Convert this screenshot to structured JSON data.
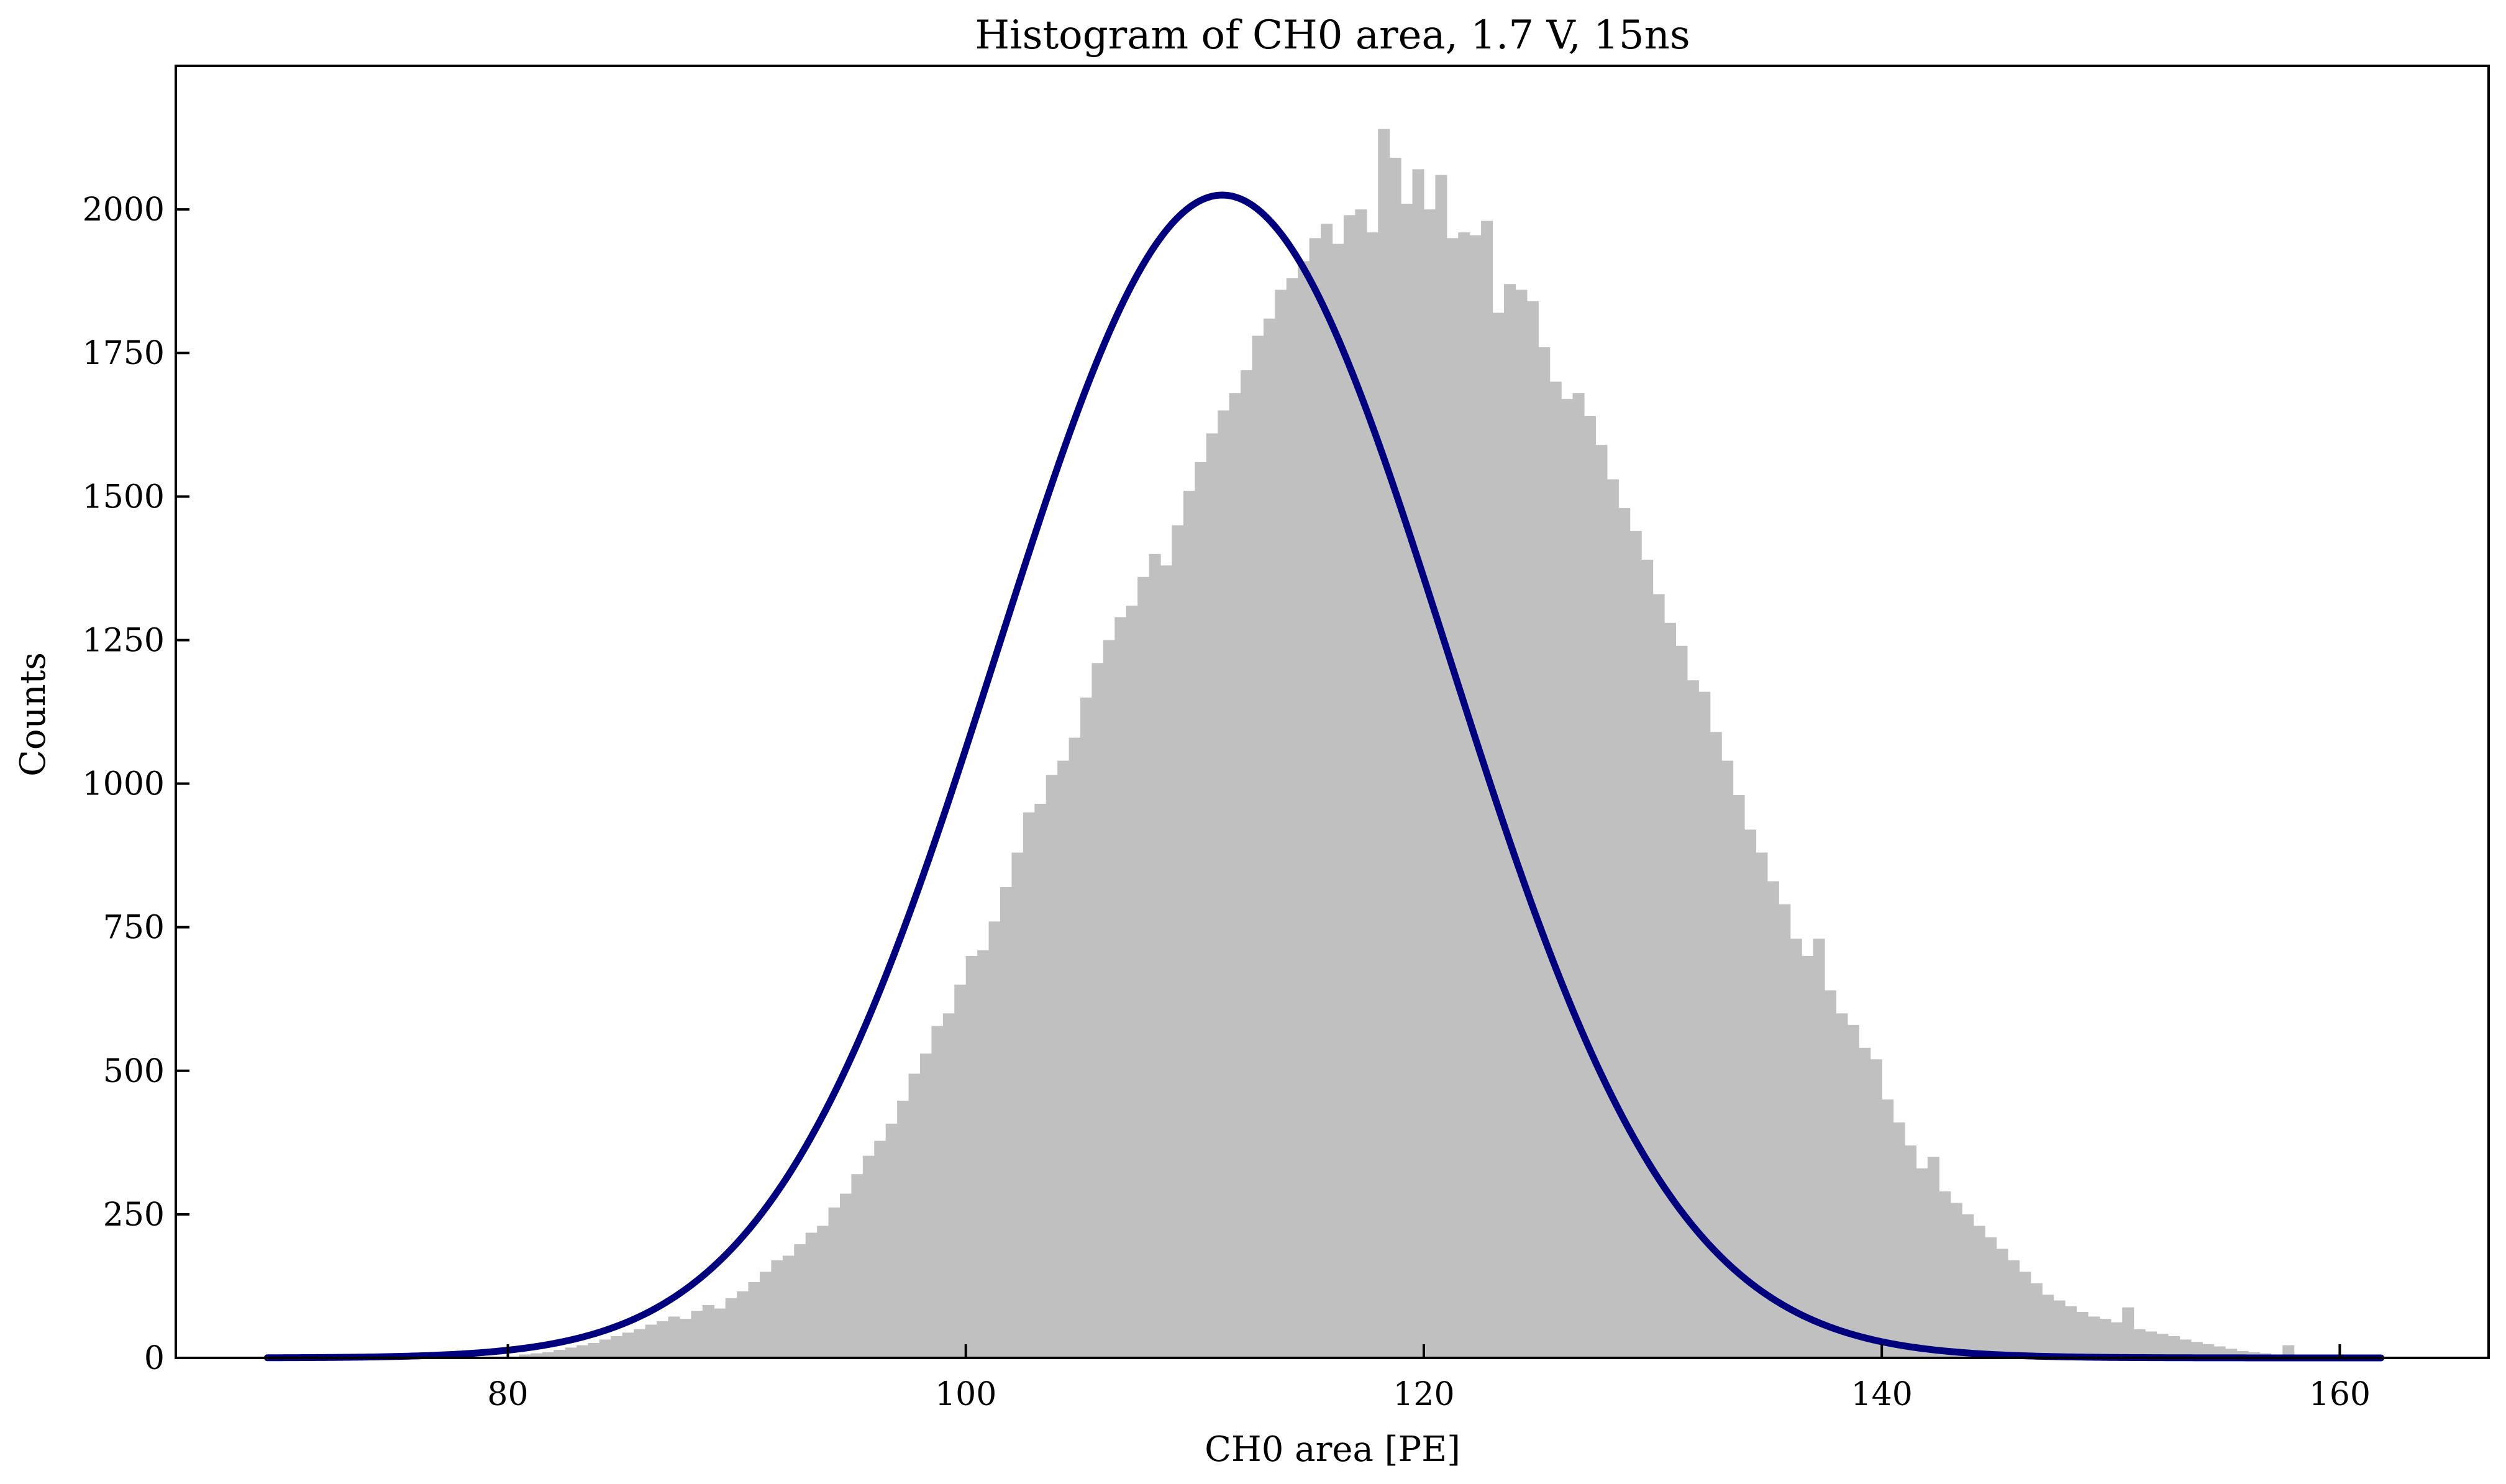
{
  "chart_data": {
    "type": "histogram",
    "title": "Histogram of CH0 area, 1.7 V, 15ns",
    "xlabel": "CH0 area [PE]",
    "ylabel": "Counts",
    "xlim": [
      65.5,
      166.5
    ],
    "ylim": [
      0,
      2250
    ],
    "x_ticks": [
      80,
      100,
      120,
      140,
      160
    ],
    "y_ticks": [
      0,
      250,
      500,
      750,
      1000,
      1250,
      1500,
      1750,
      2000
    ],
    "grid": false,
    "legend": "none",
    "histogram": {
      "name": "CH0 area counts",
      "color": "#c0c0c0",
      "bin_start": 69.5,
      "bin_width": 0.5,
      "counts": [
        0,
        0,
        0,
        0,
        0,
        0,
        0,
        0,
        0,
        0,
        0,
        0,
        0,
        0,
        0,
        0,
        0,
        0,
        0,
        0,
        0,
        2,
        6,
        8,
        10,
        14,
        18,
        22,
        26,
        32,
        38,
        44,
        50,
        58,
        64,
        72,
        68,
        82,
        92,
        86,
        104,
        116,
        132,
        150,
        170,
        178,
        198,
        218,
        230,
        262,
        286,
        320,
        352,
        378,
        408,
        448,
        495,
        530,
        578,
        600,
        650,
        700,
        710,
        760,
        820,
        880,
        950,
        965,
        1015,
        1040,
        1080,
        1150,
        1210,
        1250,
        1290,
        1310,
        1360,
        1400,
        1380,
        1450,
        1510,
        1560,
        1610,
        1650,
        1680,
        1720,
        1780,
        1810,
        1860,
        1880,
        1910,
        1950,
        1975,
        1940,
        1990,
        2000,
        1960,
        2140,
        2090,
        2010,
        2070,
        2000,
        2060,
        1950,
        1960,
        1955,
        1980,
        1820,
        1870,
        1860,
        1840,
        1760,
        1700,
        1670,
        1680,
        1640,
        1590,
        1530,
        1480,
        1440,
        1390,
        1330,
        1280,
        1240,
        1180,
        1160,
        1090,
        1040,
        980,
        920,
        880,
        830,
        790,
        730,
        700,
        730,
        640,
        600,
        580,
        540,
        520,
        450,
        410,
        370,
        330,
        350,
        290,
        270,
        250,
        230,
        210,
        190,
        170,
        150,
        130,
        110,
        100,
        90,
        80,
        72,
        68,
        62,
        88,
        50,
        46,
        42,
        38,
        32,
        28,
        24,
        20,
        16,
        12,
        10,
        8,
        6,
        22,
        4,
        3,
        2,
        2,
        1,
        1,
        1,
        1,
        0,
        0,
        0,
        0,
        0,
        0,
        0,
        0,
        0,
        0,
        0,
        0,
        0,
        0,
        0,
        0,
        0,
        0,
        0,
        0
      ]
    },
    "fit": {
      "name": "Gaussian fit",
      "type": "gaussian",
      "color": "#00007f",
      "amplitude": 2025,
      "mean": 111.2,
      "sigma": 9.85,
      "x_range": [
        69.5,
        161.8
      ]
    }
  }
}
